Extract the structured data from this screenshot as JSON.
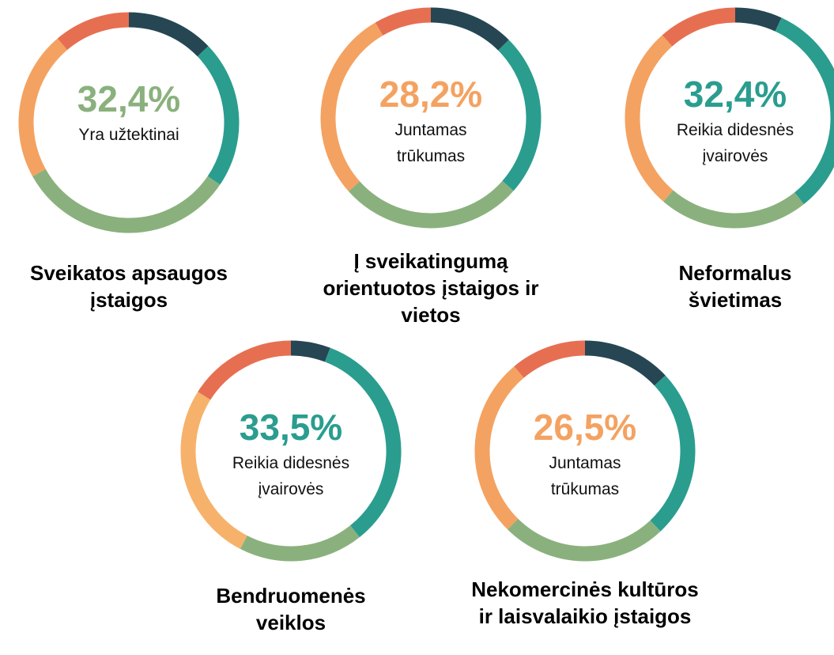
{
  "chart_data": [
    {
      "type": "donut",
      "title": "Sveikatos apsaugos įstaigos",
      "center_text": "Yra užtektinai",
      "values": [
        12.8,
        21.7,
        32.4,
        21.9,
        11.2
      ],
      "value_labels": [
        null,
        null,
        "32,4%",
        null,
        null
      ],
      "colors": [
        "#264653",
        "#2a9d8f",
        "#8ab17d",
        "#f4a261",
        "#e76f51"
      ]
    },
    {
      "type": "donut",
      "title": "Į sveikatingumą orientuotos įstaigos ir vietos",
      "center_text": "Juntamas trūkumas",
      "values": [
        12.5,
        24,
        26.9,
        28.2,
        8.4
      ],
      "value_labels": [
        null,
        null,
        null,
        "28,2%",
        null
      ],
      "colors": [
        "#264653",
        "#2a9d8f",
        "#8ab17d",
        "#f4a261",
        "#e76f51"
      ]
    },
    {
      "type": "donut",
      "title": "Neformalus švietimas",
      "center_text": "Reikia didesnės įvairovės",
      "values": [
        6.9,
        32.4,
        22,
        27.2,
        11.5
      ],
      "value_labels": [
        null,
        "32,4%",
        null,
        null,
        null
      ],
      "colors": [
        "#264653",
        "#2a9d8f",
        "#8ab17d",
        "#f4a261",
        "#e76f51"
      ]
    },
    {
      "type": "donut",
      "title": "Bendruomenės veiklos",
      "center_text": "Reikia didesnės įvairovės",
      "values": [
        5.8,
        33.5,
        18.3,
        26.4,
        16
      ],
      "value_labels": [
        null,
        "33,5%",
        null,
        null,
        null
      ],
      "colors": [
        "#264653",
        "#2a9d8f",
        "#8ab17d",
        "#f6b26b",
        "#e76f51"
      ]
    },
    {
      "type": "donut",
      "title": "Nekomercinės kultūros ir laisvalaikio įstaigos",
      "center_text": "Juntamas trūkumas",
      "values": [
        13,
        25,
        24.4,
        26.5,
        11.1
      ],
      "value_labels": [
        null,
        null,
        null,
        "26,5%",
        null
      ],
      "colors": [
        "#264653",
        "#2a9d8f",
        "#8ab17d",
        "#f4a261",
        "#e76f51"
      ]
    }
  ]
}
